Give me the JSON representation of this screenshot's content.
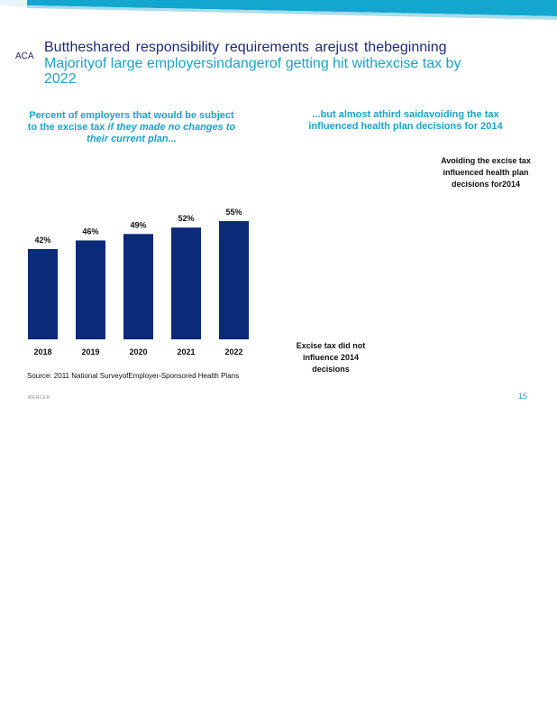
{
  "header": {
    "tag": "ACA",
    "title_line1": "Buttheshared responsibility requirements arejust thebeginning",
    "title_line2": "Majorityof large employersindangerof getting hit withexcise tax by 2022"
  },
  "left_panel": {
    "subtitle_part1": "Percent of employers that would be subject to the excise tax",
    "subtitle_italic": "if they made no changes to their current plan..."
  },
  "right_panel": {
    "subtitle": "...but almost athird saidavoiding the tax influenced health plan decisions for 2014",
    "label_avoiding": "Avoiding the excise tax influenced health plan decisions for2014",
    "label_not": "Excise tax did not influence 2014 decisions"
  },
  "source": "Source: 2011 National SurveyofEmployer-Sponsored Health Plans",
  "footer": {
    "logo": "MERCER",
    "page": "15"
  },
  "colors": {
    "bar": "#0b2a78",
    "accent": "#1ca3c9",
    "title": "#1f2a7a"
  },
  "chart_data": {
    "type": "bar",
    "categories": [
      "2018",
      "2019",
      "2020",
      "2021",
      "2022"
    ],
    "values": [
      42,
      46,
      49,
      52,
      55
    ],
    "data_labels": [
      "42%",
      "46%",
      "49%",
      "52%",
      "55%"
    ],
    "ylim": [
      0,
      60
    ],
    "grid": false,
    "legend": "none"
  }
}
